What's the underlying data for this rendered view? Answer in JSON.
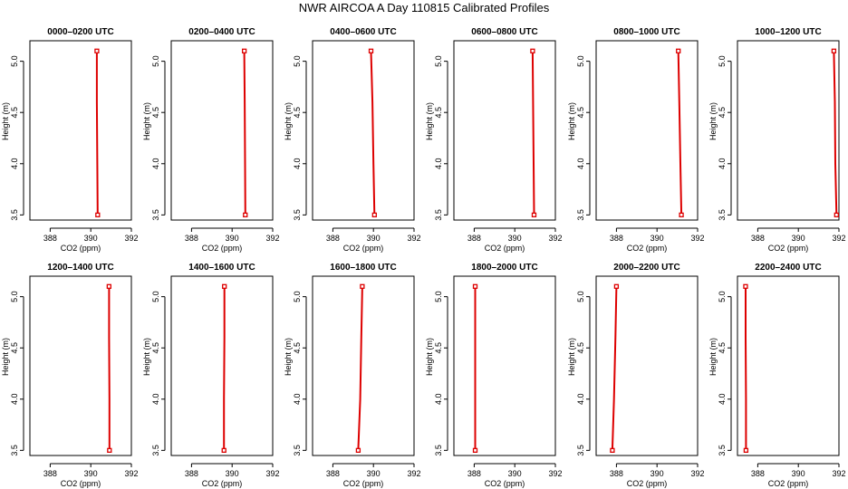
{
  "page_title": "NWR AIRCOA A  Day 110815  Calibrated Profiles",
  "colors": {
    "profile": "#dd0000",
    "axis": "#000000",
    "background": "#ffffff"
  },
  "chart_data": [
    {
      "type": "line",
      "title": "0000–0200 UTC",
      "xlabel": "CO2 (ppm)",
      "ylabel": "Height (m)",
      "xlim": [
        387,
        392
      ],
      "ylim": [
        3.45,
        5.2
      ],
      "xticks": [
        "388",
        "390",
        "392"
      ],
      "yticks": [
        "3.5",
        "4.0",
        "4.5",
        "5.0"
      ],
      "series": [
        {
          "x": [
            390.3,
            390.3,
            390.32,
            390.34
          ],
          "y": [
            5.1,
            4.6,
            4.0,
            3.5
          ]
        }
      ]
    },
    {
      "type": "line",
      "title": "0200–0400 UTC",
      "xlabel": "CO2 (ppm)",
      "ylabel": "Height (m)",
      "xlim": [
        387,
        392
      ],
      "ylim": [
        3.45,
        5.2
      ],
      "xticks": [
        "388",
        "390",
        "392"
      ],
      "yticks": [
        "3.5",
        "4.0",
        "4.5",
        "5.0"
      ],
      "series": [
        {
          "x": [
            390.6,
            390.62,
            390.64,
            390.65
          ],
          "y": [
            5.1,
            4.6,
            4.0,
            3.5
          ]
        }
      ]
    },
    {
      "type": "line",
      "title": "0400–0600 UTC",
      "xlabel": "CO2 (ppm)",
      "ylabel": "Height (m)",
      "xlim": [
        387,
        392
      ],
      "ylim": [
        3.45,
        5.2
      ],
      "xticks": [
        "388",
        "390",
        "392"
      ],
      "yticks": [
        "3.5",
        "4.0",
        "4.5",
        "5.0"
      ],
      "series": [
        {
          "x": [
            389.88,
            389.95,
            390.0,
            390.05
          ],
          "y": [
            5.1,
            4.6,
            4.0,
            3.5
          ]
        }
      ]
    },
    {
      "type": "line",
      "title": "0600–0800 UTC",
      "xlabel": "CO2 (ppm)",
      "ylabel": "Height (m)",
      "xlim": [
        387,
        392
      ],
      "ylim": [
        3.45,
        5.2
      ],
      "xticks": [
        "388",
        "390",
        "392"
      ],
      "yticks": [
        "3.5",
        "4.0",
        "4.5",
        "5.0"
      ],
      "series": [
        {
          "x": [
            390.88,
            390.9,
            390.93,
            390.95
          ],
          "y": [
            5.1,
            4.6,
            4.0,
            3.5
          ]
        }
      ]
    },
    {
      "type": "line",
      "title": "0800–1000 UTC",
      "xlabel": "CO2 (ppm)",
      "ylabel": "Height (m)",
      "xlim": [
        387,
        392
      ],
      "ylim": [
        3.45,
        5.2
      ],
      "xticks": [
        "388",
        "390",
        "392"
      ],
      "yticks": [
        "3.5",
        "4.0",
        "4.5",
        "5.0"
      ],
      "series": [
        {
          "x": [
            391.05,
            391.1,
            391.15,
            391.2
          ],
          "y": [
            5.1,
            4.6,
            4.0,
            3.5
          ]
        }
      ]
    },
    {
      "type": "line",
      "title": "1000–1200 UTC",
      "xlabel": "CO2 (ppm)",
      "ylabel": "Height (m)",
      "xlim": [
        387,
        392
      ],
      "ylim": [
        3.45,
        5.2
      ],
      "xticks": [
        "388",
        "390",
        "392"
      ],
      "yticks": [
        "3.5",
        "4.0",
        "4.5",
        "5.0"
      ],
      "series": [
        {
          "x": [
            391.75,
            391.8,
            391.82,
            391.88
          ],
          "y": [
            5.1,
            4.6,
            4.0,
            3.5
          ]
        }
      ]
    },
    {
      "type": "line",
      "title": "1200–1400 UTC",
      "xlabel": "CO2 (ppm)",
      "ylabel": "Height (m)",
      "xlim": [
        387,
        392
      ],
      "ylim": [
        3.45,
        5.2
      ],
      "xticks": [
        "388",
        "390",
        "392"
      ],
      "yticks": [
        "3.5",
        "4.0",
        "4.5",
        "5.0"
      ],
      "series": [
        {
          "x": [
            390.9,
            390.9,
            390.92,
            390.92
          ],
          "y": [
            5.1,
            4.6,
            4.0,
            3.5
          ]
        }
      ]
    },
    {
      "type": "line",
      "title": "1400–1600 UTC",
      "xlabel": "CO2 (ppm)",
      "ylabel": "Height (m)",
      "xlim": [
        387,
        392
      ],
      "ylim": [
        3.45,
        5.2
      ],
      "xticks": [
        "388",
        "390",
        "392"
      ],
      "yticks": [
        "3.5",
        "4.0",
        "4.5",
        "5.0"
      ],
      "series": [
        {
          "x": [
            389.62,
            389.62,
            389.6,
            389.6
          ],
          "y": [
            5.1,
            4.6,
            4.0,
            3.5
          ]
        }
      ]
    },
    {
      "type": "line",
      "title": "1600–1800 UTC",
      "xlabel": "CO2 (ppm)",
      "ylabel": "Height (m)",
      "xlim": [
        387,
        392
      ],
      "ylim": [
        3.45,
        5.2
      ],
      "xticks": [
        "388",
        "390",
        "392"
      ],
      "yticks": [
        "3.5",
        "4.0",
        "4.5",
        "5.0"
      ],
      "series": [
        {
          "x": [
            389.45,
            389.4,
            389.35,
            389.25
          ],
          "y": [
            5.1,
            4.6,
            4.0,
            3.5
          ]
        }
      ]
    },
    {
      "type": "line",
      "title": "1800–2000 UTC",
      "xlabel": "CO2 (ppm)",
      "ylabel": "Height (m)",
      "xlim": [
        387,
        392
      ],
      "ylim": [
        3.45,
        5.2
      ],
      "xticks": [
        "388",
        "390",
        "392"
      ],
      "yticks": [
        "3.5",
        "4.0",
        "4.5",
        "5.0"
      ],
      "series": [
        {
          "x": [
            388.05,
            388.05,
            388.05,
            388.05
          ],
          "y": [
            5.1,
            4.6,
            4.0,
            3.5
          ]
        }
      ]
    },
    {
      "type": "line",
      "title": "2000–2200 UTC",
      "xlabel": "CO2 (ppm)",
      "ylabel": "Height (m)",
      "xlim": [
        387,
        392
      ],
      "ylim": [
        3.45,
        5.2
      ],
      "xticks": [
        "388",
        "390",
        "392"
      ],
      "yticks": [
        "3.5",
        "4.0",
        "4.5",
        "5.0"
      ],
      "series": [
        {
          "x": [
            388.0,
            387.95,
            387.88,
            387.8
          ],
          "y": [
            5.1,
            4.6,
            4.0,
            3.5
          ]
        }
      ]
    },
    {
      "type": "line",
      "title": "2200–2400 UTC",
      "xlabel": "CO2 (ppm)",
      "ylabel": "Height (m)",
      "xlim": [
        387,
        392
      ],
      "ylim": [
        3.45,
        5.2
      ],
      "xticks": [
        "388",
        "390",
        "392"
      ],
      "yticks": [
        "3.5",
        "4.0",
        "4.5",
        "5.0"
      ],
      "series": [
        {
          "x": [
            387.4,
            387.4,
            387.42,
            387.42
          ],
          "y": [
            5.1,
            4.6,
            4.0,
            3.5
          ]
        }
      ]
    }
  ]
}
